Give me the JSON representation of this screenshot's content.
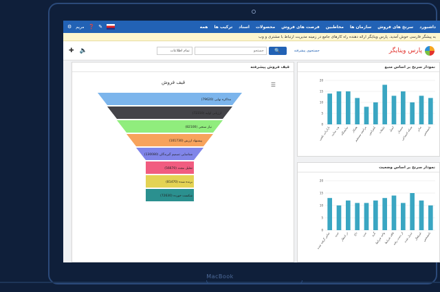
{
  "device": {
    "brand": "MacBook"
  },
  "topnav": {
    "items": [
      "داشبورد",
      "سرنخ های فروش",
      "سازمان ها",
      "مخاطبین",
      "فرصت های فروش",
      "محصولات",
      "اسناد",
      "ترکیب ها",
      "همه"
    ],
    "user": "مریم"
  },
  "notice": "به پیشگر فارسی خوش آمدید. پارس ویتایگر ارائه دهنده راه کارهای جامع در زمینه مدیریت ارتباط با مشتری و وب",
  "header": {
    "logo_text": "پارس ویتایگر",
    "search_link": "جستجوی پیشرفته",
    "search_placeholder": "جستجو",
    "search_button": "جستجو",
    "select_value": "تمام اطلاعات"
  },
  "panels": {
    "funnel": {
      "title": "قیف فروش پیشرفته",
      "chart_title": "قیف فروش"
    },
    "chart1": {
      "title": "نمودار سرنخ بر اساس منبع"
    },
    "chart2": {
      "title": "نمودار سرنخ بر اساس وضعیت"
    }
  },
  "chart_data": [
    {
      "type": "funnel",
      "title": "قیف فروش",
      "stages": [
        {
          "label": "مذاکره نهایی",
          "value": 79620,
          "color": "#7cb5ec"
        },
        {
          "label": "ارزیابی اولیه",
          "value": 72310,
          "color": "#434348"
        },
        {
          "label": "نیاز سنجی",
          "value": 82100,
          "color": "#90ed7d"
        },
        {
          "label": "پیشنهاد ارزش",
          "value": 101730,
          "color": "#f7a35c"
        },
        {
          "label": "شناسایی تصمیم گیرندگان",
          "value": 130080,
          "color": "#8085e9"
        },
        {
          "label": "تحلیل مجدد",
          "value": 56670,
          "color": "#f15c80"
        },
        {
          "label": "برنده شده",
          "value": 81470,
          "color": "#e4d354"
        },
        {
          "label": "شکست خورده",
          "value": 72630,
          "color": "#2b908f"
        }
      ]
    },
    {
      "type": "bar",
      "title": "نمودار سرنخ بر اساس منبع",
      "categories": [
        "بازاریابی تلفنی",
        "وب سایت",
        "نمایشگاه",
        "همکار",
        "مراجعه مستقیم",
        "کنفرانس",
        "تبلیغات",
        "ایمیل",
        "سمینار",
        "شبکه اجتماعی",
        "سایر",
        "نامشخص"
      ],
      "values": [
        14,
        15,
        15,
        12,
        8,
        10,
        18,
        13,
        15,
        10,
        13,
        12
      ],
      "ylim": [
        0,
        20
      ]
    },
    {
      "type": "bar",
      "title": "نمودار سرنخ بر اساس وضعیت",
      "categories": [
        "تماس گرفته شده",
        "جدید",
        "در انتظار",
        "داغ",
        "سرد",
        "گرم",
        "واجد شرایط",
        "فاقد شرایط",
        "از دست رفته",
        "تبدیل شده",
        "غیرفعال",
        "نامشخص"
      ],
      "values": [
        13,
        10,
        12,
        11,
        11,
        12,
        13,
        14,
        11,
        15,
        12,
        10
      ],
      "ylim": [
        0,
        20
      ]
    }
  ]
}
